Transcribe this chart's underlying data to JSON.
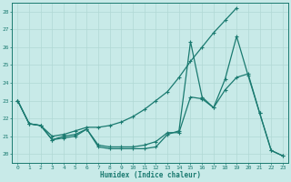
{
  "xlabel": "Humidex (Indice chaleur)",
  "background_color": "#c8eae8",
  "grid_color": "#b0d8d4",
  "line_color": "#1a7a70",
  "xlim": [
    -0.5,
    23.5
  ],
  "ylim": [
    19.5,
    28.5
  ],
  "yticks": [
    20,
    21,
    22,
    23,
    24,
    25,
    26,
    27,
    28
  ],
  "xticks": [
    0,
    1,
    2,
    3,
    4,
    5,
    6,
    7,
    8,
    9,
    10,
    11,
    12,
    13,
    14,
    15,
    16,
    17,
    18,
    19,
    20,
    21,
    22,
    23
  ],
  "series1_x": [
    0,
    1,
    2,
    3,
    4,
    5,
    6,
    7,
    8,
    9,
    10,
    11,
    12,
    13,
    14,
    15,
    16,
    17,
    18,
    19
  ],
  "series1_y": [
    23.0,
    21.7,
    21.6,
    21.0,
    21.1,
    21.3,
    21.5,
    21.5,
    21.6,
    21.8,
    22.1,
    22.5,
    23.0,
    23.5,
    24.3,
    25.2,
    26.0,
    26.8,
    27.5,
    28.2
  ],
  "series2_x": [
    0,
    1,
    2,
    3,
    4,
    5,
    6,
    7,
    8,
    9,
    10,
    11,
    12,
    13,
    14,
    15,
    16,
    17,
    18,
    19,
    20,
    21,
    22,
    23
  ],
  "series2_y": [
    23.0,
    21.7,
    21.6,
    20.8,
    20.9,
    21.0,
    21.4,
    20.4,
    20.3,
    20.3,
    20.3,
    20.3,
    20.4,
    21.1,
    21.3,
    26.3,
    23.2,
    22.6,
    23.6,
    24.3,
    24.5,
    22.3,
    20.2,
    19.9
  ],
  "series3_x": [
    0,
    1,
    2,
    3,
    4,
    5,
    6,
    7,
    8,
    9,
    10,
    11,
    12,
    13,
    14,
    15,
    16,
    17,
    18,
    19,
    20,
    21,
    22,
    23
  ],
  "series3_y": [
    23.0,
    21.7,
    21.6,
    20.8,
    21.0,
    21.1,
    21.4,
    20.5,
    20.4,
    20.4,
    20.4,
    20.5,
    20.7,
    21.2,
    21.2,
    23.2,
    23.1,
    22.6,
    24.2,
    26.6,
    24.4,
    22.3,
    20.2,
    19.9
  ]
}
